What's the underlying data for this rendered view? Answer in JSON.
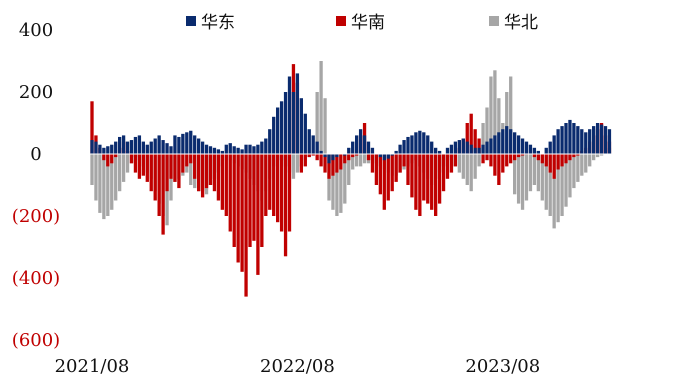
{
  "colors": {
    "huadong": "#0a2b6e",
    "huanan": "#c00000",
    "huabei": "#a6a6a6",
    "neg_tick": "#c00000"
  },
  "legend": [
    {
      "name": "华东",
      "color": "#0a2b6e"
    },
    {
      "name": "华南",
      "color": "#c00000"
    },
    {
      "name": "华北",
      "color": "#a6a6a6"
    }
  ],
  "chart_data": {
    "type": "bar",
    "stacked": false,
    "title": "",
    "xlabel": "",
    "ylabel": "",
    "ylim": [
      -600,
      400
    ],
    "grid": false,
    "legend_position": "top",
    "y_tick_labels": [
      "400",
      "200",
      "0",
      "(200)",
      "(400)",
      "(600)"
    ],
    "y_tick_values": [
      400,
      200,
      0,
      -200,
      -400,
      -600
    ],
    "x_tick_labels": [
      "2021/08",
      "2022/08",
      "2023/08"
    ],
    "x_tick_weeks": [
      0,
      52,
      104
    ],
    "x_unit": "week",
    "series": [
      {
        "name": "华东",
        "week_start": 0,
        "values": [
          45,
          40,
          30,
          20,
          25,
          30,
          40,
          55,
          60,
          40,
          45,
          55,
          60,
          40,
          30,
          40,
          50,
          60,
          45,
          35,
          25,
          60,
          55,
          65,
          70,
          75,
          60,
          50,
          40,
          30,
          25,
          20,
          15,
          10,
          30,
          35,
          25,
          20,
          15,
          30,
          30,
          25,
          30,
          40,
          50,
          80,
          120,
          150,
          170,
          200,
          250,
          200,
          260,
          180,
          130,
          80,
          60,
          40,
          10,
          -10,
          -30,
          -20,
          -10,
          0,
          -5,
          20,
          40,
          60,
          80,
          60,
          40,
          20,
          0,
          -10,
          -20,
          -15,
          -5,
          10,
          30,
          45,
          55,
          60,
          70,
          75,
          70,
          60,
          40,
          20,
          10,
          0,
          20,
          30,
          40,
          45,
          50,
          40,
          30,
          20,
          20,
          30,
          40,
          50,
          60,
          70,
          80,
          90,
          80,
          70,
          60,
          50,
          40,
          30,
          20,
          10,
          0,
          20,
          40,
          60,
          80,
          90,
          100,
          110,
          100,
          90,
          80,
          70,
          80,
          90,
          100,
          95,
          90,
          80
        ]
      },
      {
        "name": "华南",
        "week_start": 0,
        "values": [
          170,
          60,
          20,
          -20,
          -40,
          -30,
          -10,
          20,
          40,
          10,
          -30,
          -60,
          -80,
          -70,
          -90,
          -120,
          -150,
          -200,
          -260,
          -120,
          -80,
          -90,
          -110,
          -60,
          -40,
          -30,
          -80,
          -120,
          -140,
          -110,
          -100,
          -120,
          -150,
          -180,
          -200,
          -250,
          -300,
          -350,
          -380,
          -460,
          -300,
          -280,
          -390,
          -300,
          -200,
          -180,
          -200,
          -220,
          -250,
          -330,
          -250,
          290,
          230,
          -60,
          -40,
          -10,
          -5,
          -20,
          -40,
          -60,
          -80,
          -70,
          -60,
          -50,
          -30,
          -20,
          -10,
          -5,
          60,
          100,
          -20,
          -60,
          -100,
          -130,
          -180,
          -150,
          -120,
          -90,
          -60,
          -40,
          -100,
          -140,
          -180,
          -200,
          -150,
          -160,
          -180,
          -200,
          -160,
          -120,
          -80,
          -60,
          -40,
          20,
          50,
          100,
          130,
          80,
          50,
          -30,
          -20,
          -40,
          -70,
          -100,
          -60,
          -40,
          -30,
          -20,
          -10,
          -5,
          -2,
          0,
          -10,
          -20,
          -30,
          -40,
          -60,
          -80,
          -50,
          -40,
          -30,
          -20,
          -10,
          -5,
          10,
          20,
          40,
          60,
          80,
          100,
          60,
          40
        ]
      },
      {
        "name": "华北",
        "week_start": 0,
        "values": [
          -100,
          -150,
          -190,
          -210,
          -200,
          -180,
          -150,
          -120,
          -90,
          -60,
          -30,
          -10,
          -20,
          -40,
          -60,
          -80,
          -120,
          -160,
          -200,
          -230,
          -150,
          -90,
          -80,
          -70,
          -60,
          -100,
          -110,
          -120,
          -120,
          -130,
          -100,
          -80,
          -60,
          -40,
          -20,
          -20,
          -30,
          -40,
          -50,
          -60,
          -80,
          -100,
          -120,
          -150,
          -120,
          -80,
          -40,
          -20,
          -20,
          -40,
          -60,
          -80,
          -60,
          -40,
          -20,
          -10,
          -5,
          200,
          300,
          180,
          -150,
          -180,
          -200,
          -190,
          -160,
          -100,
          -50,
          -40,
          -40,
          -30,
          -30,
          -20,
          -30,
          -40,
          -50,
          -60,
          -70,
          -70,
          -60,
          -50,
          -40,
          -30,
          -20,
          -40,
          -60,
          -80,
          -100,
          -80,
          -60,
          -40,
          -20,
          -10,
          -40,
          -60,
          -80,
          -100,
          -120,
          -80,
          -40,
          100,
          150,
          250,
          270,
          180,
          100,
          200,
          250,
          -130,
          -160,
          -180,
          -150,
          -120,
          -100,
          -120,
          -150,
          -180,
          -200,
          -240,
          -220,
          -200,
          -170,
          -140,
          -110,
          -90,
          -70,
          -60,
          -40,
          -20,
          -10,
          -5,
          0,
          20
        ]
      }
    ]
  }
}
